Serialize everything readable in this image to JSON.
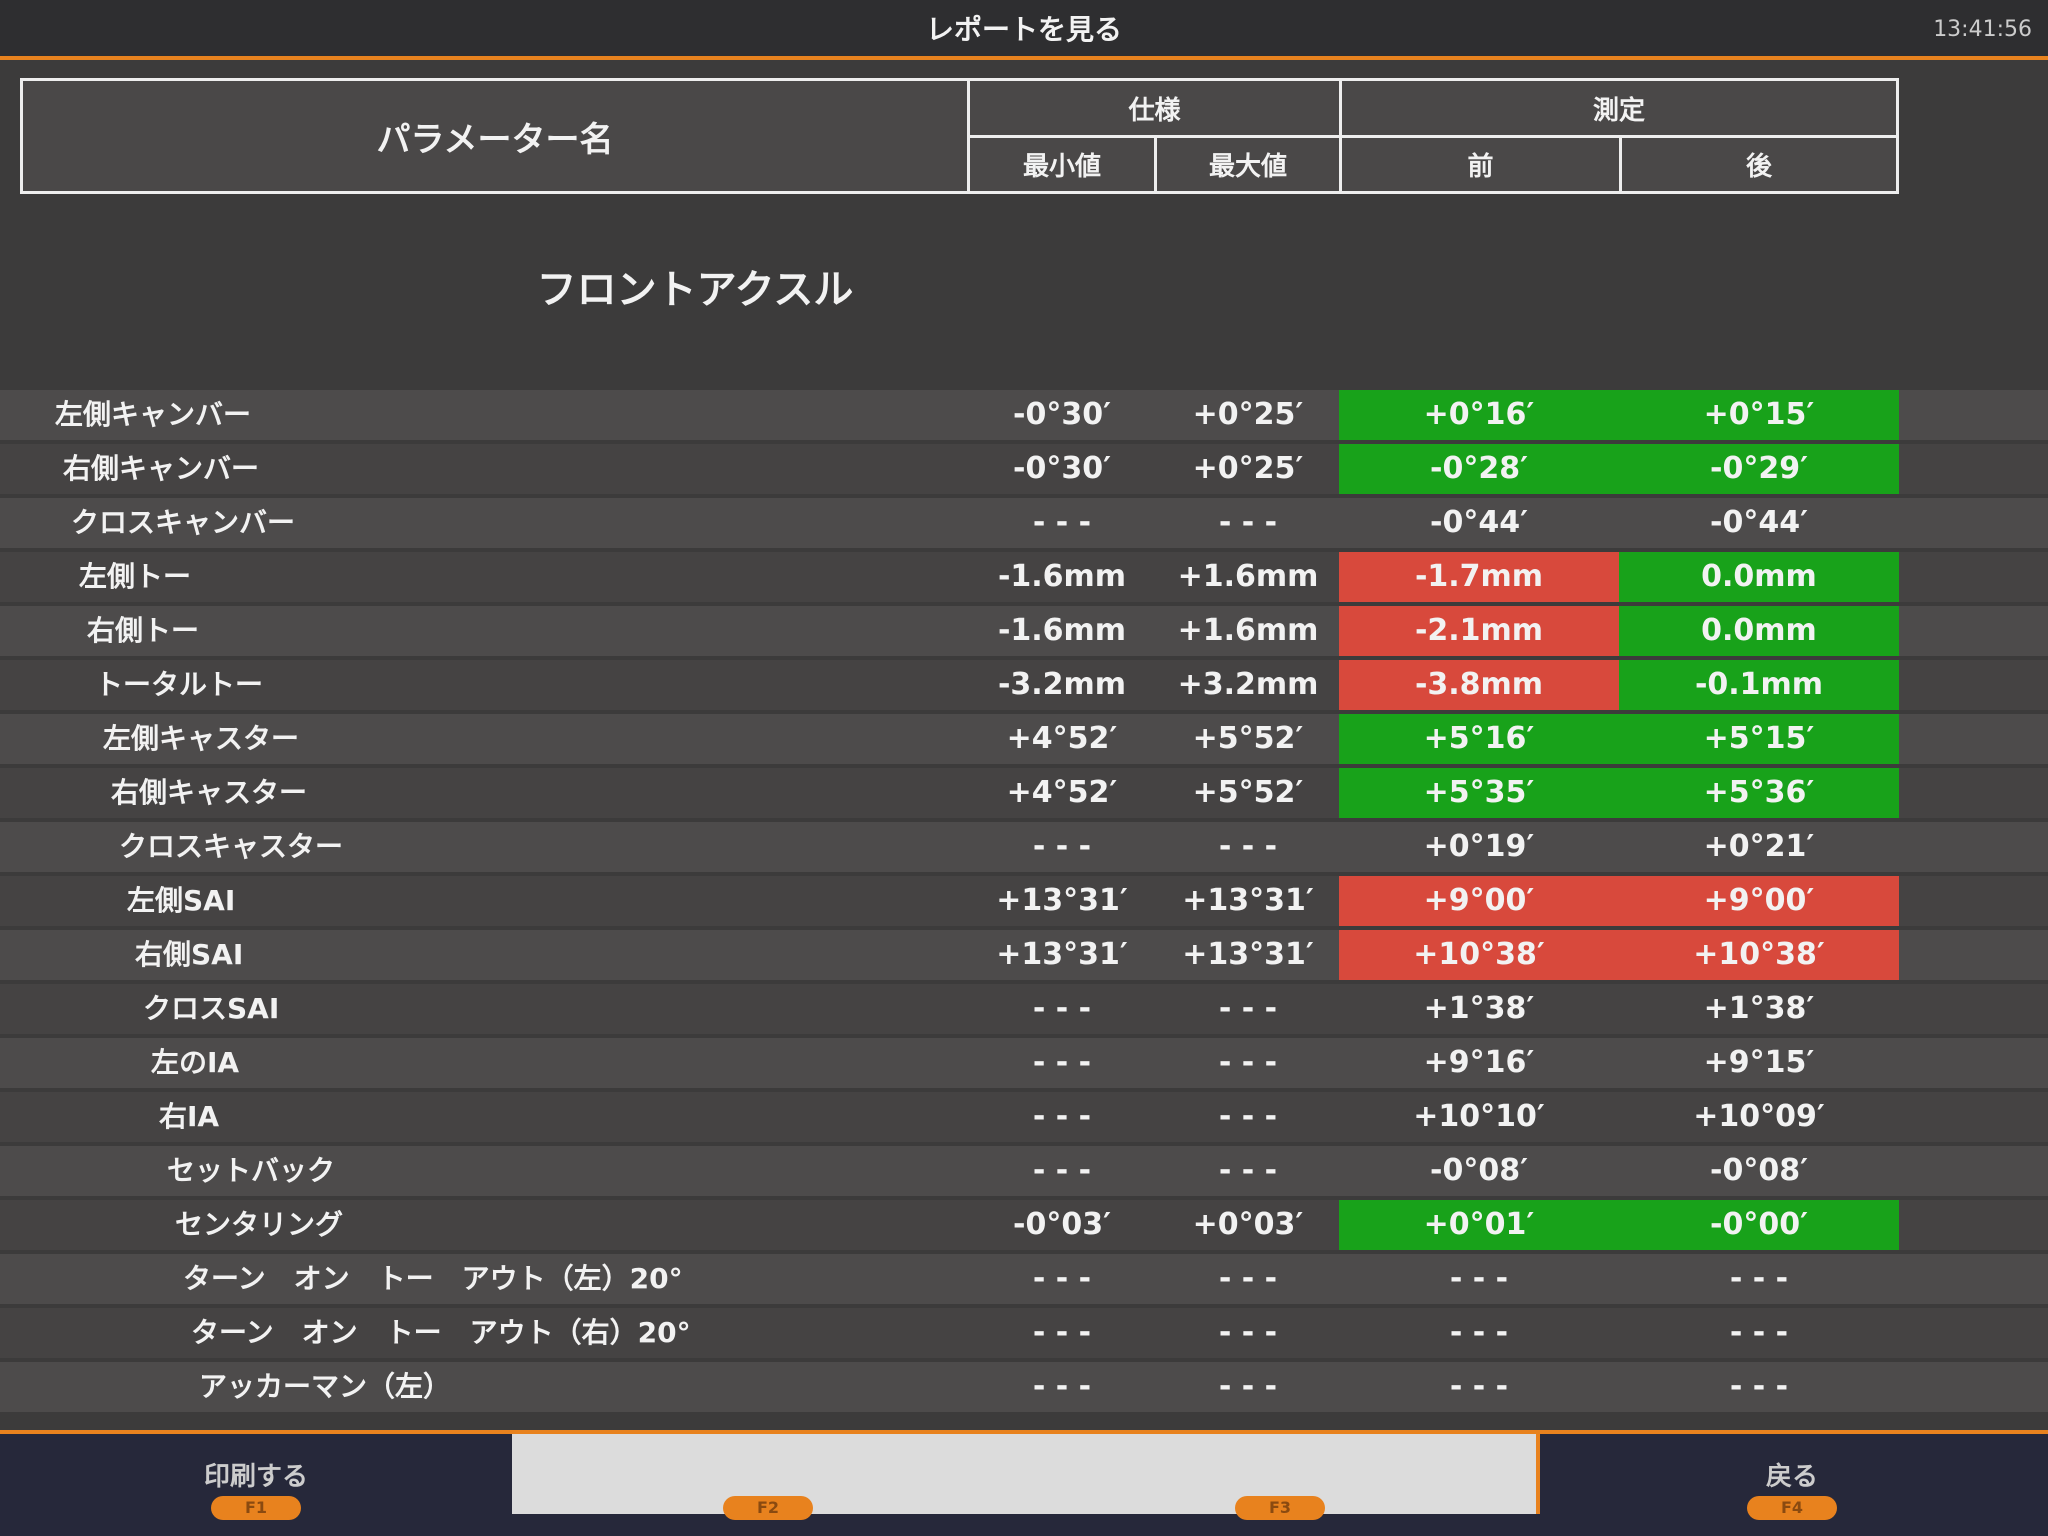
{
  "header": {
    "title": "レポートを見る",
    "time": "13:41:56"
  },
  "table": {
    "columns": {
      "name": "パラメーター名",
      "spec": "仕様",
      "measured": "測定",
      "min": "最小値",
      "max": "最大値",
      "before": "前",
      "after": "後"
    },
    "section": "フロントアクスル",
    "colors": {
      "ok": "#18a21a",
      "ng": "#d8493c"
    },
    "rows": [
      {
        "name": "左側キャンバー",
        "min": "-0°30′",
        "max": "+0°25′",
        "before": "+0°16′",
        "after": "+0°15′",
        "before_status": "ok",
        "after_status": "ok"
      },
      {
        "name": "右側キャンバー",
        "min": "-0°30′",
        "max": "+0°25′",
        "before": "-0°28′",
        "after": "-0°29′",
        "before_status": "ok",
        "after_status": "ok"
      },
      {
        "name": "クロスキャンバー",
        "min": "- - -",
        "max": "- - -",
        "before": "-0°44′",
        "after": "-0°44′",
        "before_status": null,
        "after_status": null
      },
      {
        "name": "左側トー",
        "min": "-1.6mm",
        "max": "+1.6mm",
        "before": "-1.7mm",
        "after": "0.0mm",
        "before_status": "ng",
        "after_status": "ok"
      },
      {
        "name": "右側トー",
        "min": "-1.6mm",
        "max": "+1.6mm",
        "before": "-2.1mm",
        "after": "0.0mm",
        "before_status": "ng",
        "after_status": "ok"
      },
      {
        "name": "トータルトー",
        "min": "-3.2mm",
        "max": "+3.2mm",
        "before": "-3.8mm",
        "after": "-0.1mm",
        "before_status": "ng",
        "after_status": "ok"
      },
      {
        "name": "左側キャスター",
        "min": "+4°52′",
        "max": "+5°52′",
        "before": "+5°16′",
        "after": "+5°15′",
        "before_status": "ok",
        "after_status": "ok"
      },
      {
        "name": "右側キャスター",
        "min": "+4°52′",
        "max": "+5°52′",
        "before": "+5°35′",
        "after": "+5°36′",
        "before_status": "ok",
        "after_status": "ok"
      },
      {
        "name": "クロスキャスター",
        "min": "- - -",
        "max": "- - -",
        "before": "+0°19′",
        "after": "+0°21′",
        "before_status": null,
        "after_status": null
      },
      {
        "name": "左側SAI",
        "min": "+13°31′",
        "max": "+13°31′",
        "before": "+9°00′",
        "after": "+9°00′",
        "before_status": "ng",
        "after_status": "ng"
      },
      {
        "name": "右側SAI",
        "min": "+13°31′",
        "max": "+13°31′",
        "before": "+10°38′",
        "after": "+10°38′",
        "before_status": "ng",
        "after_status": "ng"
      },
      {
        "name": "クロスSAI",
        "min": "- - -",
        "max": "- - -",
        "before": "+1°38′",
        "after": "+1°38′",
        "before_status": null,
        "after_status": null
      },
      {
        "name": "左のIA",
        "min": "- - -",
        "max": "- - -",
        "before": "+9°16′",
        "after": "+9°15′",
        "before_status": null,
        "after_status": null
      },
      {
        "name": "右IA",
        "min": "- - -",
        "max": "- - -",
        "before": "+10°10′",
        "after": "+10°09′",
        "before_status": null,
        "after_status": null
      },
      {
        "name": "セットバック",
        "min": "- - -",
        "max": "- - -",
        "before": "-0°08′",
        "after": "-0°08′",
        "before_status": null,
        "after_status": null
      },
      {
        "name": "センタリング",
        "min": "-0°03′",
        "max": "+0°03′",
        "before": "+0°01′",
        "after": "-0°00′",
        "before_status": "ok",
        "after_status": "ok"
      },
      {
        "name": "ターン　オン　トー　アウト（左）20°",
        "min": "- - -",
        "max": "- - -",
        "before": "- - -",
        "after": "- - -",
        "before_status": null,
        "after_status": null
      },
      {
        "name": "ターン　オン　トー　アウト（右）20°",
        "min": "- - -",
        "max": "- - -",
        "before": "- - -",
        "after": "- - -",
        "before_status": null,
        "after_status": null
      },
      {
        "name": "アッカーマン（左）",
        "min": "- - -",
        "max": "- - -",
        "before": "- - -",
        "after": "- - -",
        "before_status": null,
        "after_status": null
      }
    ]
  },
  "footer": {
    "buttons": [
      {
        "label": "印刷する",
        "key": "F1"
      },
      {
        "key": "F2"
      },
      {
        "key": "F3"
      },
      {
        "label": "戻る",
        "key": "F4"
      }
    ]
  }
}
